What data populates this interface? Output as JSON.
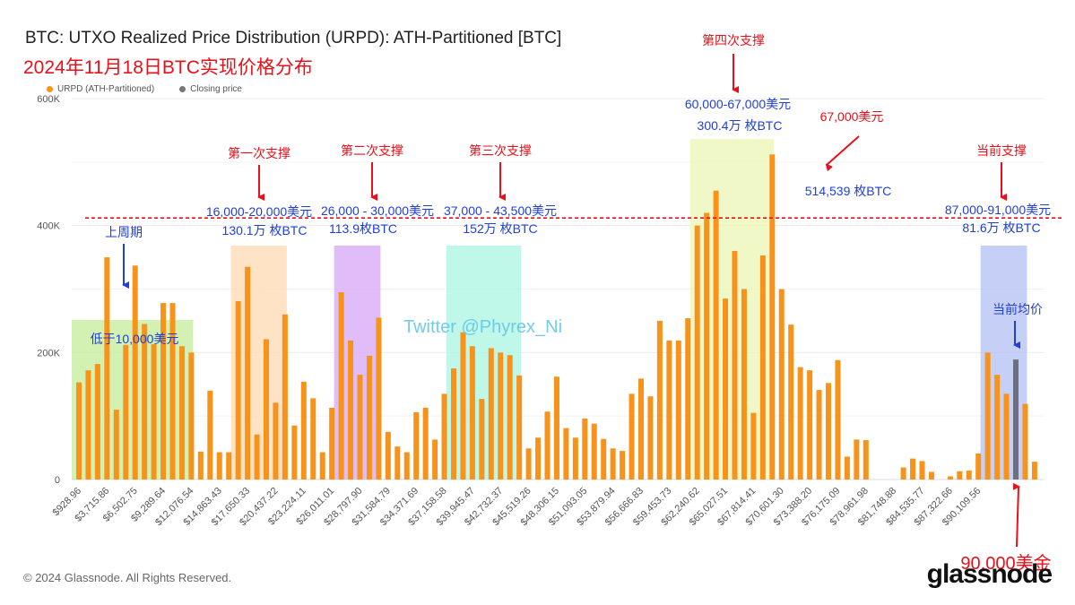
{
  "header": {
    "title": "BTC: UTXO Realized Price Distribution (URPD): ATH-Partitioned [BTC]",
    "subtitle": "2024年11月18日BTC实现价格分布"
  },
  "legend": {
    "items": [
      {
        "label": "URPD (ATH-Partitioned)",
        "color": "#f7931a"
      },
      {
        "label": "Closing price",
        "color": "#777777"
      }
    ]
  },
  "footer": {
    "copyright": "© 2024 Glassnode. All Rights Reserved.",
    "logo": "glassnode"
  },
  "chart_data": {
    "type": "bar",
    "xlabel": "",
    "ylabel": "",
    "ylim": [
      0,
      600000
    ],
    "y_ticks": [
      "0",
      "200K",
      "400K",
      "600K"
    ],
    "x_tick_labels": [
      "$928.96",
      "$3,715.86",
      "$6,502.75",
      "$9,289.64",
      "$12,076.54",
      "$14,863.43",
      "$17,650.33",
      "$20,437.22",
      "$23,224.11",
      "$26,011.01",
      "$28,797.90",
      "$31,584.79",
      "$34,371.69",
      "$37,158.58",
      "$39,945.47",
      "$42,732.37",
      "$45,519.26",
      "$48,306.15",
      "$51,093.05",
      "$53,879.94",
      "$56,666.83",
      "$59,453.73",
      "$62,240.62",
      "$65,027.51",
      "$67,814.41",
      "$70,601.30",
      "$73,388.20",
      "$76,175.09",
      "$78,961.98",
      "$81,748.88",
      "$84,535.77",
      "$87,322.66",
      "$90,109.56"
    ],
    "series": [
      {
        "name": "URPD (ATH-Partitioned)",
        "values": [
          153000,
          172000,
          182000,
          350000,
          110000,
          212000,
          337000,
          245000,
          213000,
          278000,
          278000,
          210000,
          200000,
          44000,
          140000,
          43000,
          43000,
          281000,
          335000,
          71000,
          221000,
          121000,
          260000,
          85000,
          154000,
          128000,
          43000,
          113000,
          295000,
          219000,
          165000,
          195000,
          255000,
          75000,
          52000,
          43000,
          106000,
          113000,
          63000,
          135000,
          175000,
          232000,
          210000,
          127000,
          207000,
          200000,
          196000,
          164000,
          49000,
          66000,
          107000,
          162000,
          81000,
          66000,
          96000,
          88000,
          64000,
          49000,
          45000,
          135000,
          159000,
          131000,
          250000,
          219000,
          219000,
          254000,
          400000,
          420000,
          455000,
          285000,
          360000,
          300000,
          105000,
          353000,
          512000,
          300000,
          244000,
          177000,
          172000,
          141000,
          152000,
          188000,
          36000,
          63000,
          62000,
          0,
          0,
          0,
          19000,
          33000,
          29000,
          12000,
          0,
          5000,
          13000,
          14000,
          41000,
          200000,
          165000,
          135000,
          189000,
          119000,
          28000
        ]
      }
    ],
    "closing_price_bar_index": 100,
    "twitter_watermark": "Twitter @Phyrex_Ni",
    "reference_line": {
      "y": 412000,
      "style": "dashed",
      "color": "#e8101a"
    },
    "zones": [
      {
        "start": 0,
        "end": 12,
        "color": "#c4ec9a",
        "title": "",
        "range": "",
        "amount": ""
      },
      {
        "start": 17,
        "end": 22,
        "color": "#ffd9b0",
        "title": "第一次支撑",
        "range": "16,000-20,000美元",
        "amount": "130.1万 枚BTC"
      },
      {
        "start": 28,
        "end": 32,
        "color": "#d5a6f7",
        "title": "第二次支撑",
        "range": "26,000 - 30,000美元",
        "amount": "113.9枚BTC"
      },
      {
        "start": 40,
        "end": 47,
        "color": "#a9f5e2",
        "title": "第三次支撑",
        "range": "37,000 - 43,500美元",
        "amount": "152万 枚BTC"
      },
      {
        "start": 66,
        "end": 74,
        "color": "#ecf5b6",
        "title": "第四次支撑",
        "range": "60,000-67,000美元",
        "amount": "300.4万 枚BTC"
      },
      {
        "start": 97,
        "end": 101,
        "color": "#b3bff2",
        "title": "当前支撑",
        "range": "87,000-91,000美元",
        "amount": "81.6万 枚BTC"
      }
    ],
    "annotations": {
      "last_cycle": "上周期",
      "below_10k": "低于10,000美元",
      "price_67k": "67,000美元",
      "amount_67k": "514,539 枚BTC",
      "current_avg": "当前均价",
      "price_90k": "90,000美金"
    }
  }
}
